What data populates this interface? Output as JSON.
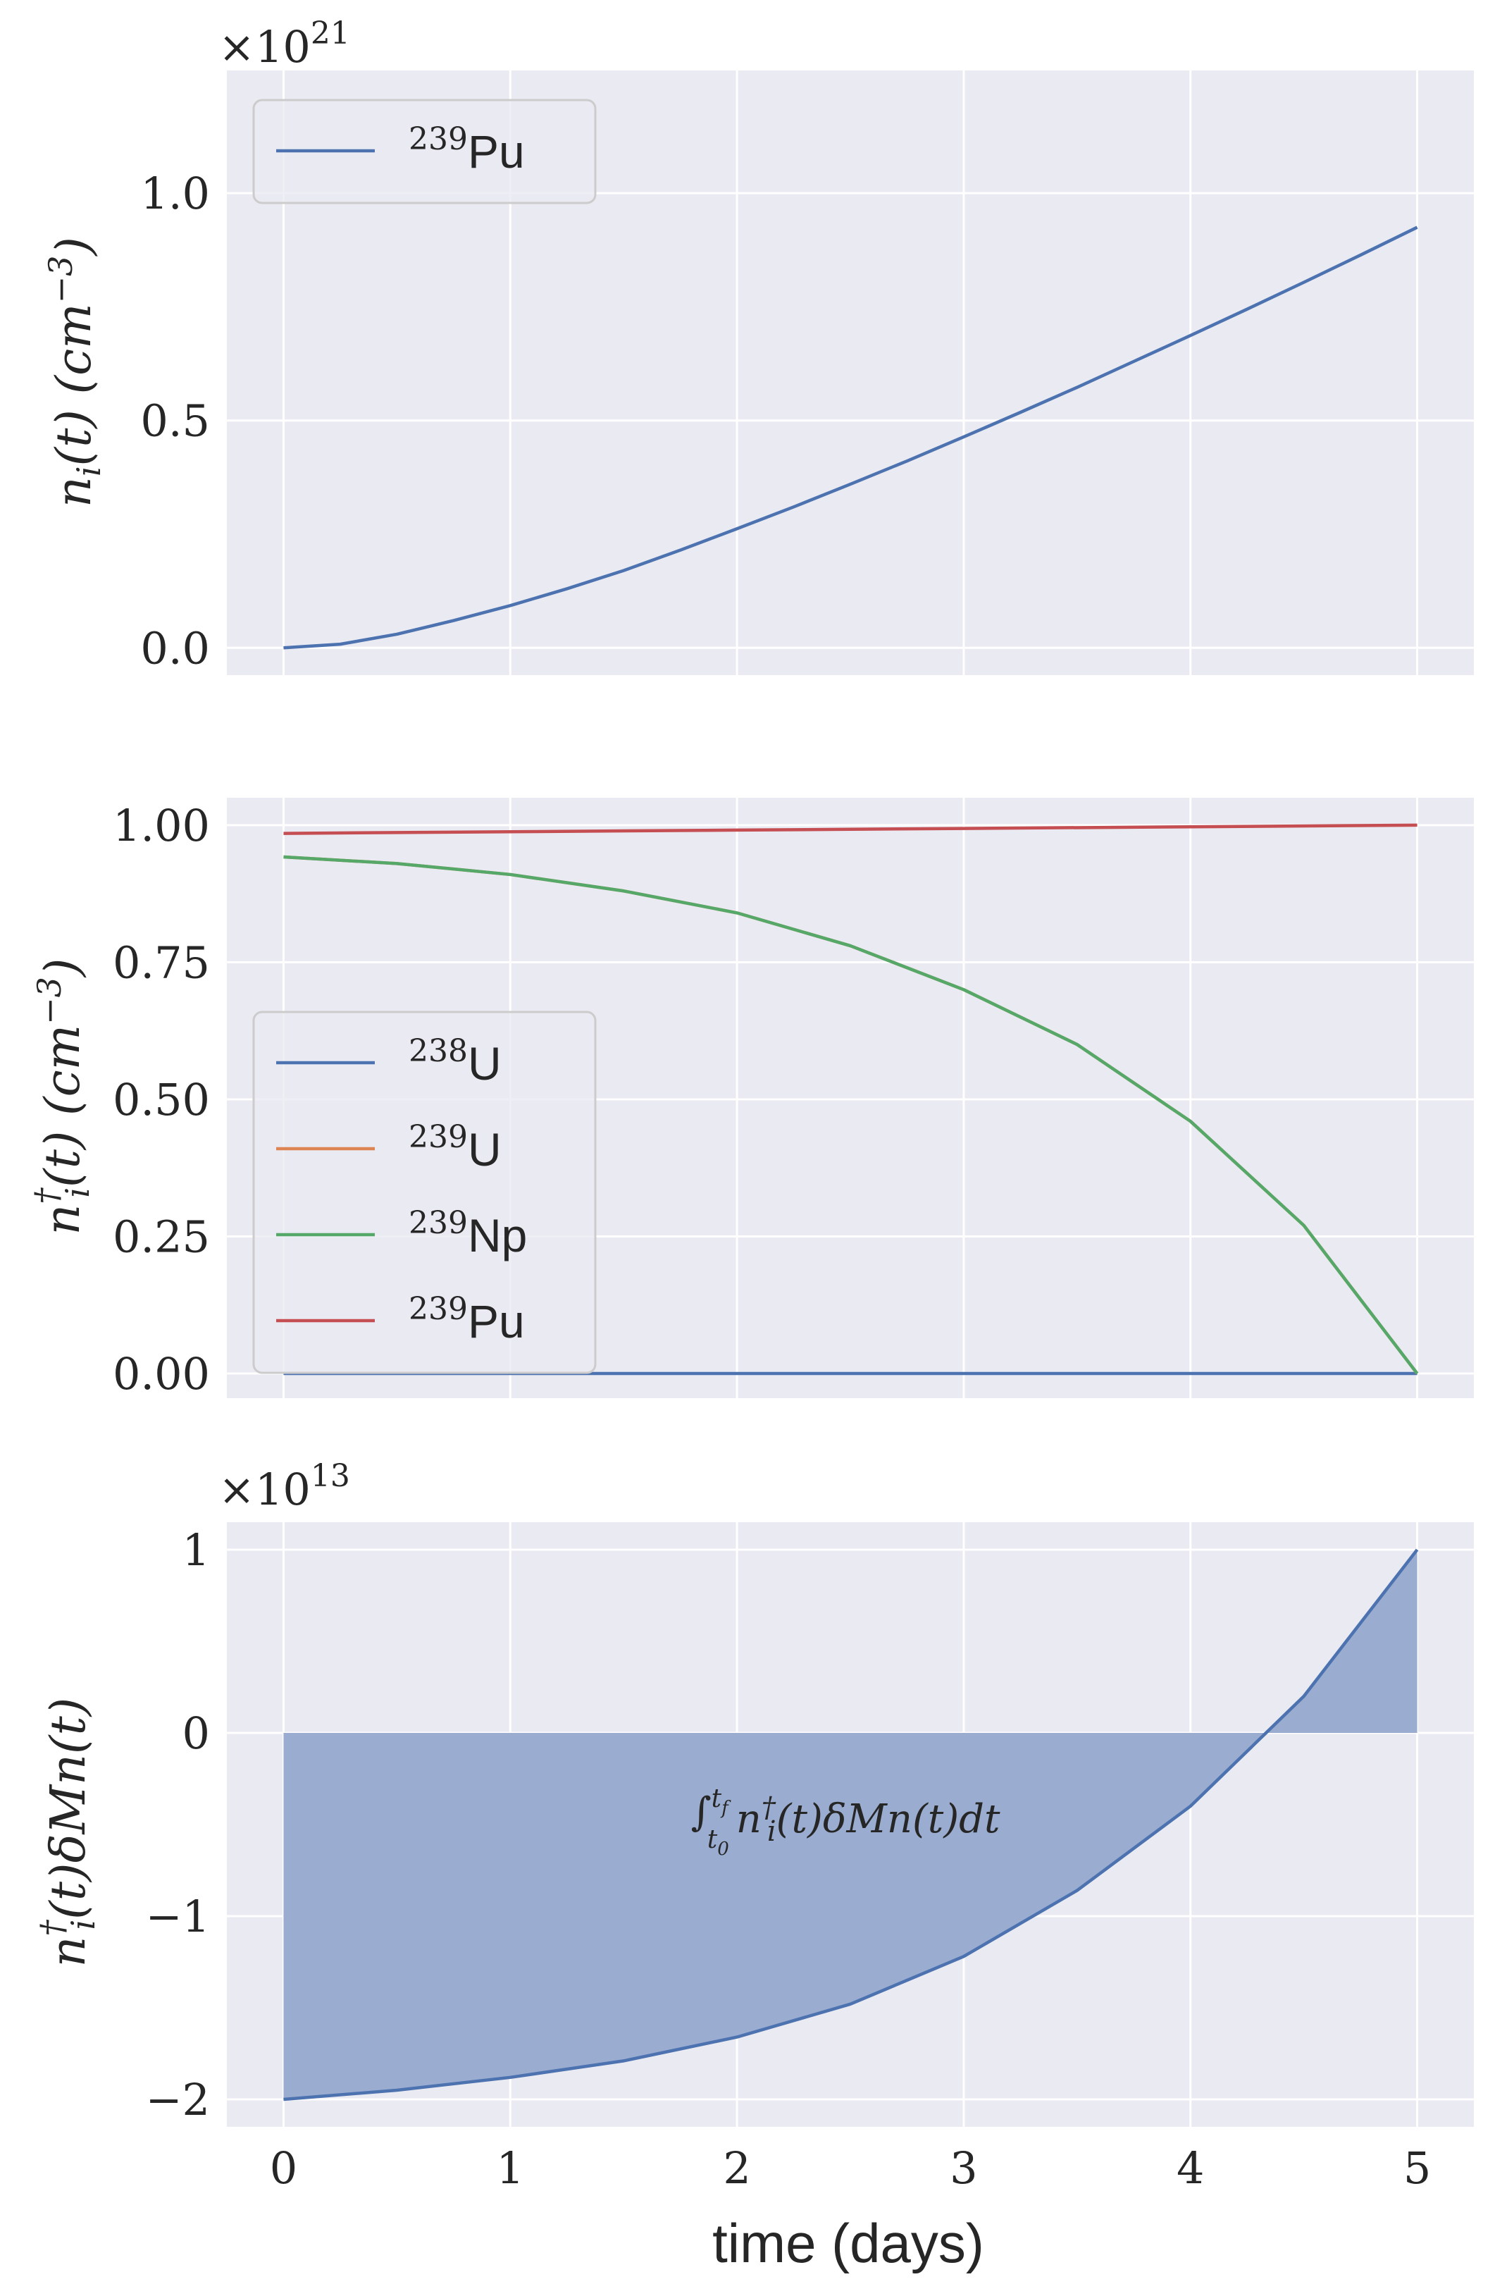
{
  "figure": {
    "xlabel": "time (days)",
    "x_ticks": [
      "0",
      "1",
      "2",
      "3",
      "4",
      "5"
    ]
  },
  "colors": {
    "background": "#ffffff",
    "axes_face": "#eaeaf2",
    "grid": "#ffffff",
    "text": "#262626",
    "blue": "#4c72b0",
    "orange": "#dd8452",
    "green": "#55a868",
    "red": "#c44e52",
    "fill": "#9aadd0"
  },
  "chart_data": [
    {
      "type": "line",
      "ylabel": "n_i(t) (cm^-3)",
      "y_offset_text": "×10^21",
      "x_range": [
        -0.25,
        5.25
      ],
      "ylim": [
        -0.06,
        1.27
      ],
      "y_ticks": [
        0.0,
        0.5,
        1.0
      ],
      "y_tick_labels": [
        "0.0",
        "0.5",
        "1.0"
      ],
      "grid": true,
      "legend_position": "upper-left",
      "series": [
        {
          "name": "239Pu",
          "color": "#4c72b0",
          "x": [
            0,
            0.25,
            0.5,
            0.75,
            1.0,
            1.25,
            1.5,
            1.75,
            2.0,
            2.25,
            2.5,
            2.75,
            3.0,
            3.25,
            3.5,
            3.75,
            4.0,
            4.25,
            4.5,
            4.75,
            5.0
          ],
          "y": [
            0.0,
            0.008,
            0.03,
            0.06,
            0.093,
            0.13,
            0.17,
            0.215,
            0.262,
            0.31,
            0.36,
            0.411,
            0.464,
            0.518,
            0.573,
            0.63,
            0.687,
            0.745,
            0.804,
            0.864,
            0.925
          ]
        }
      ]
    },
    {
      "type": "line",
      "ylabel": "n_i†(t) (cm^-3)",
      "x_range": [
        -0.25,
        5.25
      ],
      "ylim": [
        -0.045,
        1.05
      ],
      "y_ticks": [
        0.0,
        0.25,
        0.5,
        0.75,
        1.0
      ],
      "y_tick_labels": [
        "0.00",
        "0.25",
        "0.50",
        "0.75",
        "1.00"
      ],
      "grid": true,
      "legend_position": "center-left",
      "series": [
        {
          "name": "238U",
          "color": "#4c72b0",
          "x": [
            0,
            5
          ],
          "y": [
            0.0,
            0.0
          ]
        },
        {
          "name": "239U",
          "color": "#dd8452",
          "x": [
            0,
            0.5,
            1.0,
            1.5,
            2.0,
            2.5,
            3.0,
            3.5,
            4.0,
            4.5,
            5.0
          ],
          "y": [
            0.942,
            0.93,
            0.91,
            0.88,
            0.84,
            0.78,
            0.7,
            0.6,
            0.46,
            0.27,
            0.0
          ]
        },
        {
          "name": "239Np",
          "color": "#55a868",
          "x": [
            0,
            0.5,
            1.0,
            1.5,
            2.0,
            2.5,
            3.0,
            3.5,
            4.0,
            4.5,
            5.0
          ],
          "y": [
            0.942,
            0.93,
            0.91,
            0.88,
            0.84,
            0.78,
            0.7,
            0.6,
            0.46,
            0.27,
            0.0
          ]
        },
        {
          "name": "239Pu",
          "color": "#c44e52",
          "x": [
            0,
            1,
            2,
            3,
            4,
            5
          ],
          "y": [
            0.985,
            0.988,
            0.991,
            0.994,
            0.997,
            1.0
          ]
        }
      ]
    },
    {
      "type": "area",
      "ylabel": "n_i†(t)δMn(t)",
      "y_offset_text": "×10^13",
      "x_range": [
        -0.25,
        5.25
      ],
      "ylim": [
        -2.15,
        1.15
      ],
      "y_ticks": [
        -2,
        -1,
        0,
        1
      ],
      "y_tick_labels": [
        "−2",
        "−1",
        "0",
        "1"
      ],
      "grid": true,
      "annotation": "∫_{t0}^{tf} n_i†(t) δMn(t) dt",
      "series": [
        {
          "color": "#4c72b0",
          "fill_color": "#9aadd0",
          "x": [
            0,
            0.5,
            1.0,
            1.5,
            2.0,
            2.5,
            3.0,
            3.5,
            4.0,
            4.5,
            5.0
          ],
          "y": [
            -2.0,
            -1.95,
            -1.88,
            -1.79,
            -1.66,
            -1.48,
            -1.22,
            -0.86,
            -0.4,
            0.2,
            1.0
          ]
        }
      ]
    }
  ]
}
